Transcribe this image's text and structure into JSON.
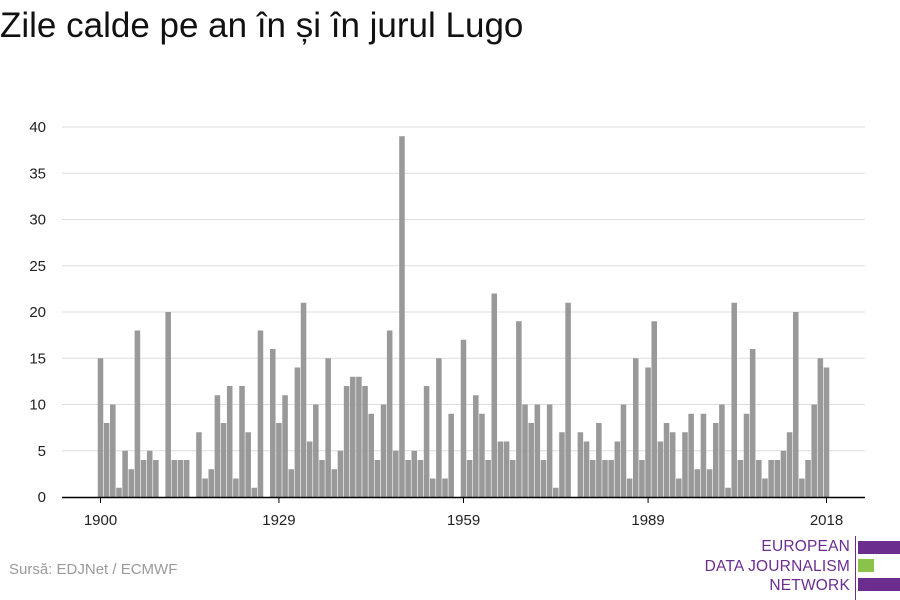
{
  "title": "Zile calde pe an în și în jurul Lugo",
  "source": "Sursă: EDJNet / ECMWF",
  "logo": {
    "lines": [
      "EUROPEAN",
      "DATA JOURNALISM",
      "NETWORK"
    ],
    "colors": {
      "text": "#6b2d8e",
      "bar_top": "#6b2d8e",
      "bar_mid": "#8bc34a",
      "bar_bottom": "#6b2d8e"
    }
  },
  "colors": {
    "bar": "#999999",
    "grid": "#dddddd",
    "axis": "#000000"
  },
  "chart_data": {
    "type": "bar",
    "title": "Zile calde pe an în și în jurul Lugo",
    "xlabel": "",
    "ylabel": "",
    "ylim": [
      0,
      40
    ],
    "yticks": [
      0,
      5,
      10,
      15,
      20,
      25,
      30,
      35,
      40
    ],
    "xticks": [
      1900,
      1929,
      1959,
      1989,
      2018
    ],
    "grid": true,
    "x": [
      1900,
      1901,
      1902,
      1903,
      1904,
      1905,
      1906,
      1907,
      1908,
      1909,
      1910,
      1911,
      1912,
      1913,
      1914,
      1915,
      1916,
      1917,
      1918,
      1919,
      1920,
      1921,
      1922,
      1923,
      1924,
      1925,
      1926,
      1927,
      1928,
      1929,
      1930,
      1931,
      1932,
      1933,
      1934,
      1935,
      1936,
      1937,
      1938,
      1939,
      1940,
      1941,
      1942,
      1943,
      1944,
      1945,
      1946,
      1947,
      1948,
      1949,
      1950,
      1951,
      1952,
      1953,
      1954,
      1955,
      1956,
      1957,
      1958,
      1959,
      1960,
      1961,
      1962,
      1963,
      1964,
      1965,
      1966,
      1967,
      1968,
      1969,
      1970,
      1971,
      1972,
      1973,
      1974,
      1975,
      1976,
      1977,
      1978,
      1979,
      1980,
      1981,
      1982,
      1983,
      1984,
      1985,
      1986,
      1987,
      1988,
      1989,
      1990,
      1991,
      1992,
      1993,
      1994,
      1995,
      1996,
      1997,
      1998,
      1999,
      2000,
      2001,
      2002,
      2003,
      2004,
      2005,
      2006,
      2007,
      2008,
      2009,
      2010,
      2011,
      2012,
      2013,
      2014,
      2015,
      2016,
      2017,
      2018
    ],
    "values": [
      15,
      8,
      10,
      1,
      5,
      3,
      18,
      4,
      5,
      4,
      0,
      20,
      4,
      4,
      4,
      0,
      7,
      2,
      3,
      11,
      8,
      12,
      2,
      12,
      7,
      1,
      18,
      0,
      16,
      8,
      11,
      3,
      14,
      21,
      6,
      10,
      4,
      15,
      3,
      5,
      12,
      13,
      13,
      12,
      9,
      4,
      10,
      18,
      5,
      39,
      4,
      5,
      4,
      12,
      2,
      15,
      2,
      9,
      0,
      17,
      4,
      11,
      9,
      4,
      22,
      6,
      6,
      4,
      19,
      10,
      8,
      10,
      4,
      10,
      1,
      7,
      21,
      0,
      7,
      6,
      4,
      8,
      4,
      4,
      6,
      10,
      2,
      15,
      4,
      14,
      19,
      6,
      8,
      7,
      2,
      7,
      9,
      3,
      9,
      3,
      8,
      10,
      1,
      21,
      4,
      9,
      16,
      4,
      2,
      4,
      4,
      5,
      7,
      20,
      2,
      4,
      10,
      15,
      14
    ]
  }
}
